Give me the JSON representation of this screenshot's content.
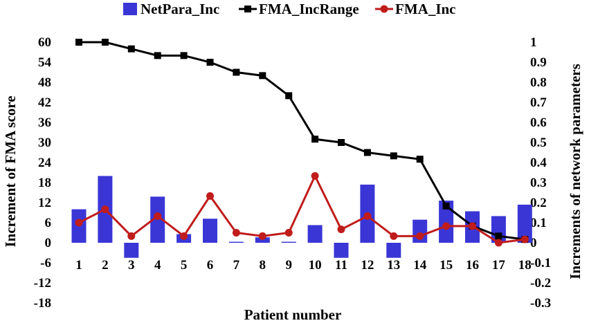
{
  "chart_data": {
    "type": "bar+line",
    "title": "",
    "categories": [
      "1",
      "2",
      "3",
      "4",
      "5",
      "6",
      "7",
      "8",
      "9",
      "10",
      "11",
      "12",
      "13",
      "14",
      "15",
      "16",
      "17",
      "18"
    ],
    "xlabel": "Patient number",
    "ylabel_left": "Increment of FMA score",
    "ylabel_right": "Increments of  network parameters",
    "ylim_left": [
      -18,
      60
    ],
    "ylim_right": [
      -0.3,
      1
    ],
    "yticks_left": [
      "60",
      "54",
      "48",
      "42",
      "36",
      "30",
      "24",
      "18",
      "12",
      "6",
      "0",
      "-6",
      "-12",
      "-18"
    ],
    "yticks_right": [
      "1",
      "0.9",
      "0.8",
      "0.7",
      "0.6",
      "0.5",
      "0.4",
      "0.3",
      "0.2",
      "0.1",
      "0",
      "-0.1",
      "-0.2",
      "-0.3"
    ],
    "legend_position": "top",
    "series": [
      {
        "name": "NetPara_Inc",
        "type": "bar",
        "axis": "right",
        "color": "#3a36d6",
        "values": [
          0.167,
          0.333,
          -0.075,
          0.23,
          0.043,
          0.12,
          0.005,
          0.027,
          0.005,
          0.088,
          -0.075,
          0.29,
          -0.075,
          0.115,
          0.21,
          0.157,
          0.133,
          0.19
        ]
      },
      {
        "name": "FMA_IncRange",
        "type": "line",
        "axis": "left",
        "color": "#000000",
        "values": [
          60,
          60,
          58,
          56,
          56,
          54,
          51,
          50,
          44,
          31,
          30,
          27,
          26,
          25,
          11,
          5,
          2,
          1
        ]
      },
      {
        "name": "FMA_Inc",
        "type": "line",
        "axis": "left",
        "color": "#c01c1c",
        "values": [
          6,
          10,
          2,
          8,
          2,
          14,
          3,
          2,
          3,
          20,
          4,
          8,
          2,
          2,
          5,
          5,
          0,
          1
        ]
      }
    ]
  }
}
